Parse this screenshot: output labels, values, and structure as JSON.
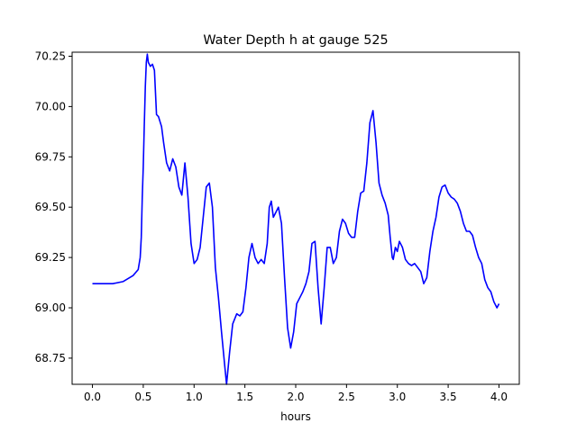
{
  "chart_data": {
    "type": "line",
    "title": "Water Depth h at gauge 525",
    "xlabel": "hours",
    "ylabel": "",
    "xlim": [
      -0.2,
      4.2
    ],
    "ylim": [
      68.62,
      70.27
    ],
    "xticks": [
      0.0,
      0.5,
      1.0,
      1.5,
      2.0,
      2.5,
      3.0,
      3.5,
      4.0
    ],
    "xtick_labels": [
      "0.0",
      "0.5",
      "1.0",
      "1.5",
      "2.0",
      "2.5",
      "3.0",
      "3.5",
      "4.0"
    ],
    "yticks": [
      68.75,
      69.0,
      69.25,
      69.5,
      69.75,
      70.0,
      70.25
    ],
    "ytick_labels": [
      "68.75",
      "69.00",
      "69.25",
      "69.50",
      "69.75",
      "70.00",
      "70.25"
    ],
    "grid": false,
    "series": [
      {
        "color": "#0000ff",
        "x": [
          0.0,
          0.2,
          0.3,
          0.4,
          0.45,
          0.47,
          0.48,
          0.49,
          0.5,
          0.51,
          0.52,
          0.53,
          0.54,
          0.55,
          0.57,
          0.59,
          0.61,
          0.63,
          0.65,
          0.68,
          0.7,
          0.73,
          0.76,
          0.79,
          0.82,
          0.85,
          0.88,
          0.91,
          0.94,
          0.97,
          1.0,
          1.03,
          1.06,
          1.09,
          1.12,
          1.15,
          1.18,
          1.21,
          1.24,
          1.27,
          1.3,
          1.32,
          1.35,
          1.38,
          1.42,
          1.45,
          1.48,
          1.51,
          1.54,
          1.57,
          1.6,
          1.63,
          1.66,
          1.69,
          1.72,
          1.74,
          1.76,
          1.78,
          1.8,
          1.83,
          1.86,
          1.89,
          1.92,
          1.95,
          1.98,
          2.01,
          2.04,
          2.07,
          2.1,
          2.13,
          2.16,
          2.19,
          2.22,
          2.25,
          2.28,
          2.31,
          2.34,
          2.37,
          2.4,
          2.43,
          2.46,
          2.49,
          2.52,
          2.55,
          2.58,
          2.61,
          2.64,
          2.67,
          2.7,
          2.73,
          2.76,
          2.79,
          2.82,
          2.85,
          2.88,
          2.91,
          2.93,
          2.95,
          2.96,
          2.98,
          3.0,
          3.02,
          3.05,
          3.08,
          3.11,
          3.14,
          3.17,
          3.2,
          3.23,
          3.26,
          3.29,
          3.32,
          3.35,
          3.38,
          3.41,
          3.44,
          3.47,
          3.5,
          3.53,
          3.56,
          3.59,
          3.62,
          3.65,
          3.68,
          3.71,
          3.74,
          3.77,
          3.8,
          3.83,
          3.86,
          3.89,
          3.92,
          3.95,
          3.98,
          4.0
        ],
        "y": [
          69.12,
          69.12,
          69.13,
          69.16,
          69.19,
          69.25,
          69.35,
          69.55,
          69.7,
          69.9,
          70.1,
          70.22,
          70.26,
          70.22,
          70.2,
          70.21,
          70.18,
          69.96,
          69.95,
          69.9,
          69.82,
          69.72,
          69.68,
          69.74,
          69.7,
          69.6,
          69.56,
          69.72,
          69.55,
          69.32,
          69.22,
          69.24,
          69.3,
          69.45,
          69.6,
          69.62,
          69.5,
          69.2,
          69.05,
          68.88,
          68.72,
          68.62,
          68.78,
          68.92,
          68.97,
          68.96,
          68.98,
          69.1,
          69.25,
          69.32,
          69.25,
          69.22,
          69.24,
          69.22,
          69.32,
          69.5,
          69.53,
          69.45,
          69.47,
          69.5,
          69.42,
          69.15,
          68.9,
          68.8,
          68.88,
          69.02,
          69.05,
          69.08,
          69.12,
          69.18,
          69.32,
          69.33,
          69.1,
          68.92,
          69.1,
          69.3,
          69.3,
          69.22,
          69.25,
          69.38,
          69.44,
          69.42,
          69.37,
          69.35,
          69.35,
          69.48,
          69.57,
          69.58,
          69.72,
          69.92,
          69.98,
          69.82,
          69.62,
          69.56,
          69.52,
          69.46,
          69.35,
          69.25,
          69.24,
          69.3,
          69.28,
          69.33,
          69.3,
          69.24,
          69.22,
          69.21,
          69.22,
          69.2,
          69.18,
          69.12,
          69.15,
          69.28,
          69.38,
          69.45,
          69.55,
          69.6,
          69.61,
          69.57,
          69.55,
          69.54,
          69.52,
          69.48,
          69.42,
          69.38,
          69.38,
          69.36,
          69.3,
          69.25,
          69.22,
          69.14,
          69.1,
          69.08,
          69.03,
          69.0,
          69.02
        ]
      }
    ]
  }
}
